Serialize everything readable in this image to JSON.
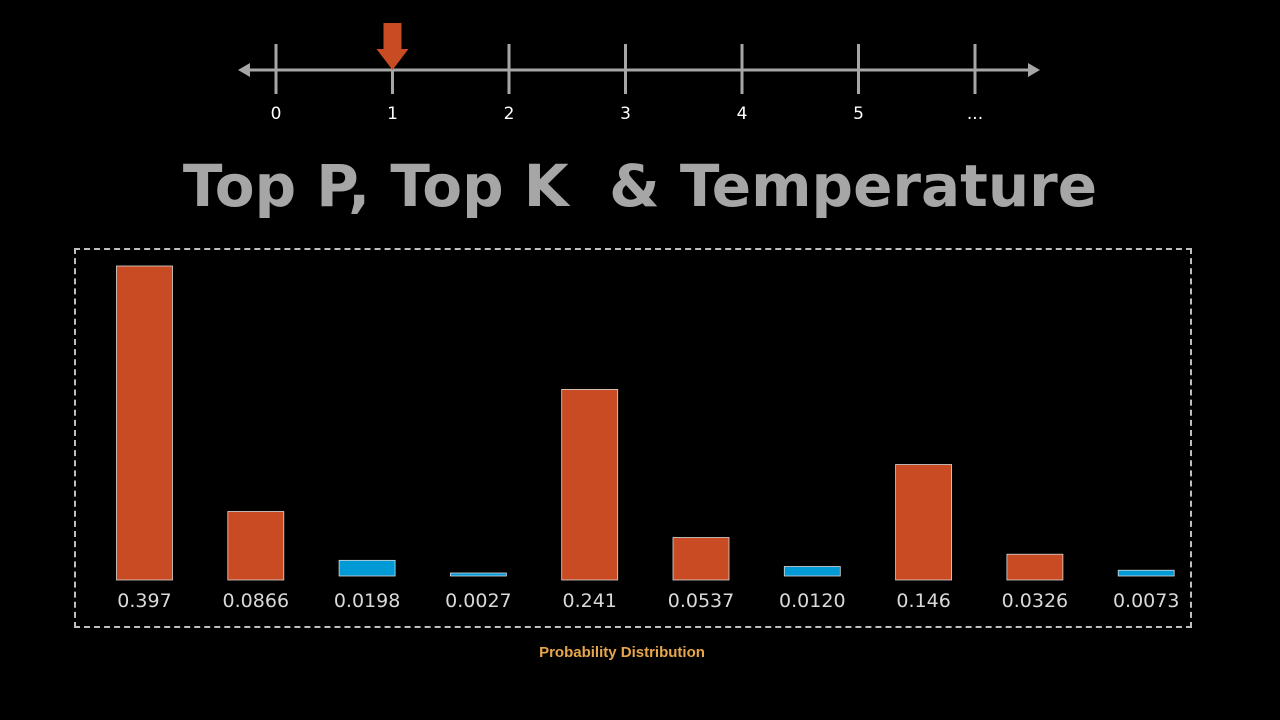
{
  "timeline": {
    "ticks": [
      "0",
      "1",
      "2",
      "3",
      "4",
      "5",
      "..."
    ],
    "pointer_index": 1,
    "pointer_color": "#c94b23",
    "axis_color": "#a6a6a6"
  },
  "title": "Top P, Top K  & Temperature",
  "distribution_label": "Probability Distribution",
  "chart_data": {
    "type": "bar",
    "title": "",
    "xlabel": "",
    "ylabel": "",
    "grid": false,
    "ylim": [
      0,
      0.397
    ],
    "values": [
      0.397,
      0.0866,
      0.0198,
      0.0027,
      0.241,
      0.0537,
      0.012,
      0.146,
      0.0326,
      0.0073
    ],
    "labels": [
      "0.397",
      "0.0866",
      "0.0198",
      "0.0027",
      "0.241",
      "0.0537",
      "0.0120",
      "0.146",
      "0.0326",
      "0.0073"
    ],
    "highlighted": [
      false,
      false,
      true,
      true,
      false,
      false,
      true,
      false,
      false,
      true
    ],
    "colors": {
      "default": "#c94b23",
      "highlight": "#009ad6",
      "label": "#d9d9d9"
    }
  }
}
